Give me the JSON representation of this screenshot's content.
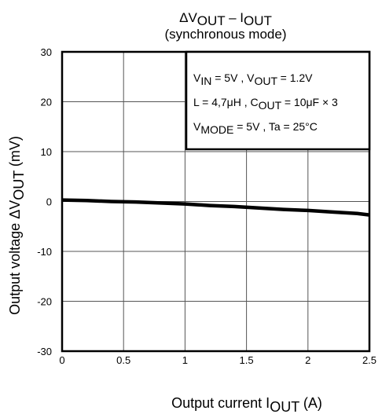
{
  "chart_data": {
    "type": "line",
    "title": {
      "line1": {
        "pre": "ΔV",
        "sub1": "OUT",
        "mid": " – I",
        "sub2": "OUT"
      },
      "line2": "(synchronous mode)"
    },
    "xlabel": {
      "pre": "Output current   I",
      "sub": "OUT",
      "post": "   (A)"
    },
    "ylabel": {
      "pre": "Output voltage    ΔV",
      "sub": "OUT",
      "post": "   (mV)"
    },
    "xlim": [
      0,
      2.5
    ],
    "ylim": [
      -30,
      30
    ],
    "x_ticks": [
      0,
      0.5,
      1,
      1.5,
      2,
      2.5
    ],
    "x_tick_labels": [
      "0",
      "0.5",
      "1",
      "1.5",
      "2",
      "2.5"
    ],
    "y_ticks": [
      30,
      20,
      10,
      0,
      -10,
      -20,
      -30
    ],
    "y_tick_labels": [
      "30",
      "20",
      "10",
      "0",
      "-10",
      "-20",
      "-30"
    ],
    "grid": true,
    "annotation_box": {
      "position": "top-right",
      "lines": [
        [
          {
            "t": "V"
          },
          {
            "t": "IN",
            "sub": true
          },
          {
            "t": " = 5V , V"
          },
          {
            "t": "OUT",
            "sub": true
          },
          {
            "t": " = 1.2V"
          }
        ],
        [
          {
            "t": "L = 4,7μH , C"
          },
          {
            "t": "OUT",
            "sub": true
          },
          {
            "t": " = 10μF × 3"
          }
        ],
        [
          {
            "t": "V"
          },
          {
            "t": "MODE",
            "sub": true
          },
          {
            "t": " = 5V , Ta = 25°C"
          }
        ]
      ]
    },
    "series": [
      {
        "color": "#000000",
        "x": [
          0,
          0.2,
          0.4,
          0.6,
          0.8,
          1.0,
          1.2,
          1.4,
          1.6,
          1.8,
          2.0,
          2.2,
          2.4,
          2.5
        ],
        "y": [
          0.3,
          0.2,
          0.0,
          -0.1,
          -0.3,
          -0.5,
          -0.8,
          -1.0,
          -1.3,
          -1.6,
          -1.8,
          -2.1,
          -2.4,
          -2.7
        ]
      }
    ]
  }
}
